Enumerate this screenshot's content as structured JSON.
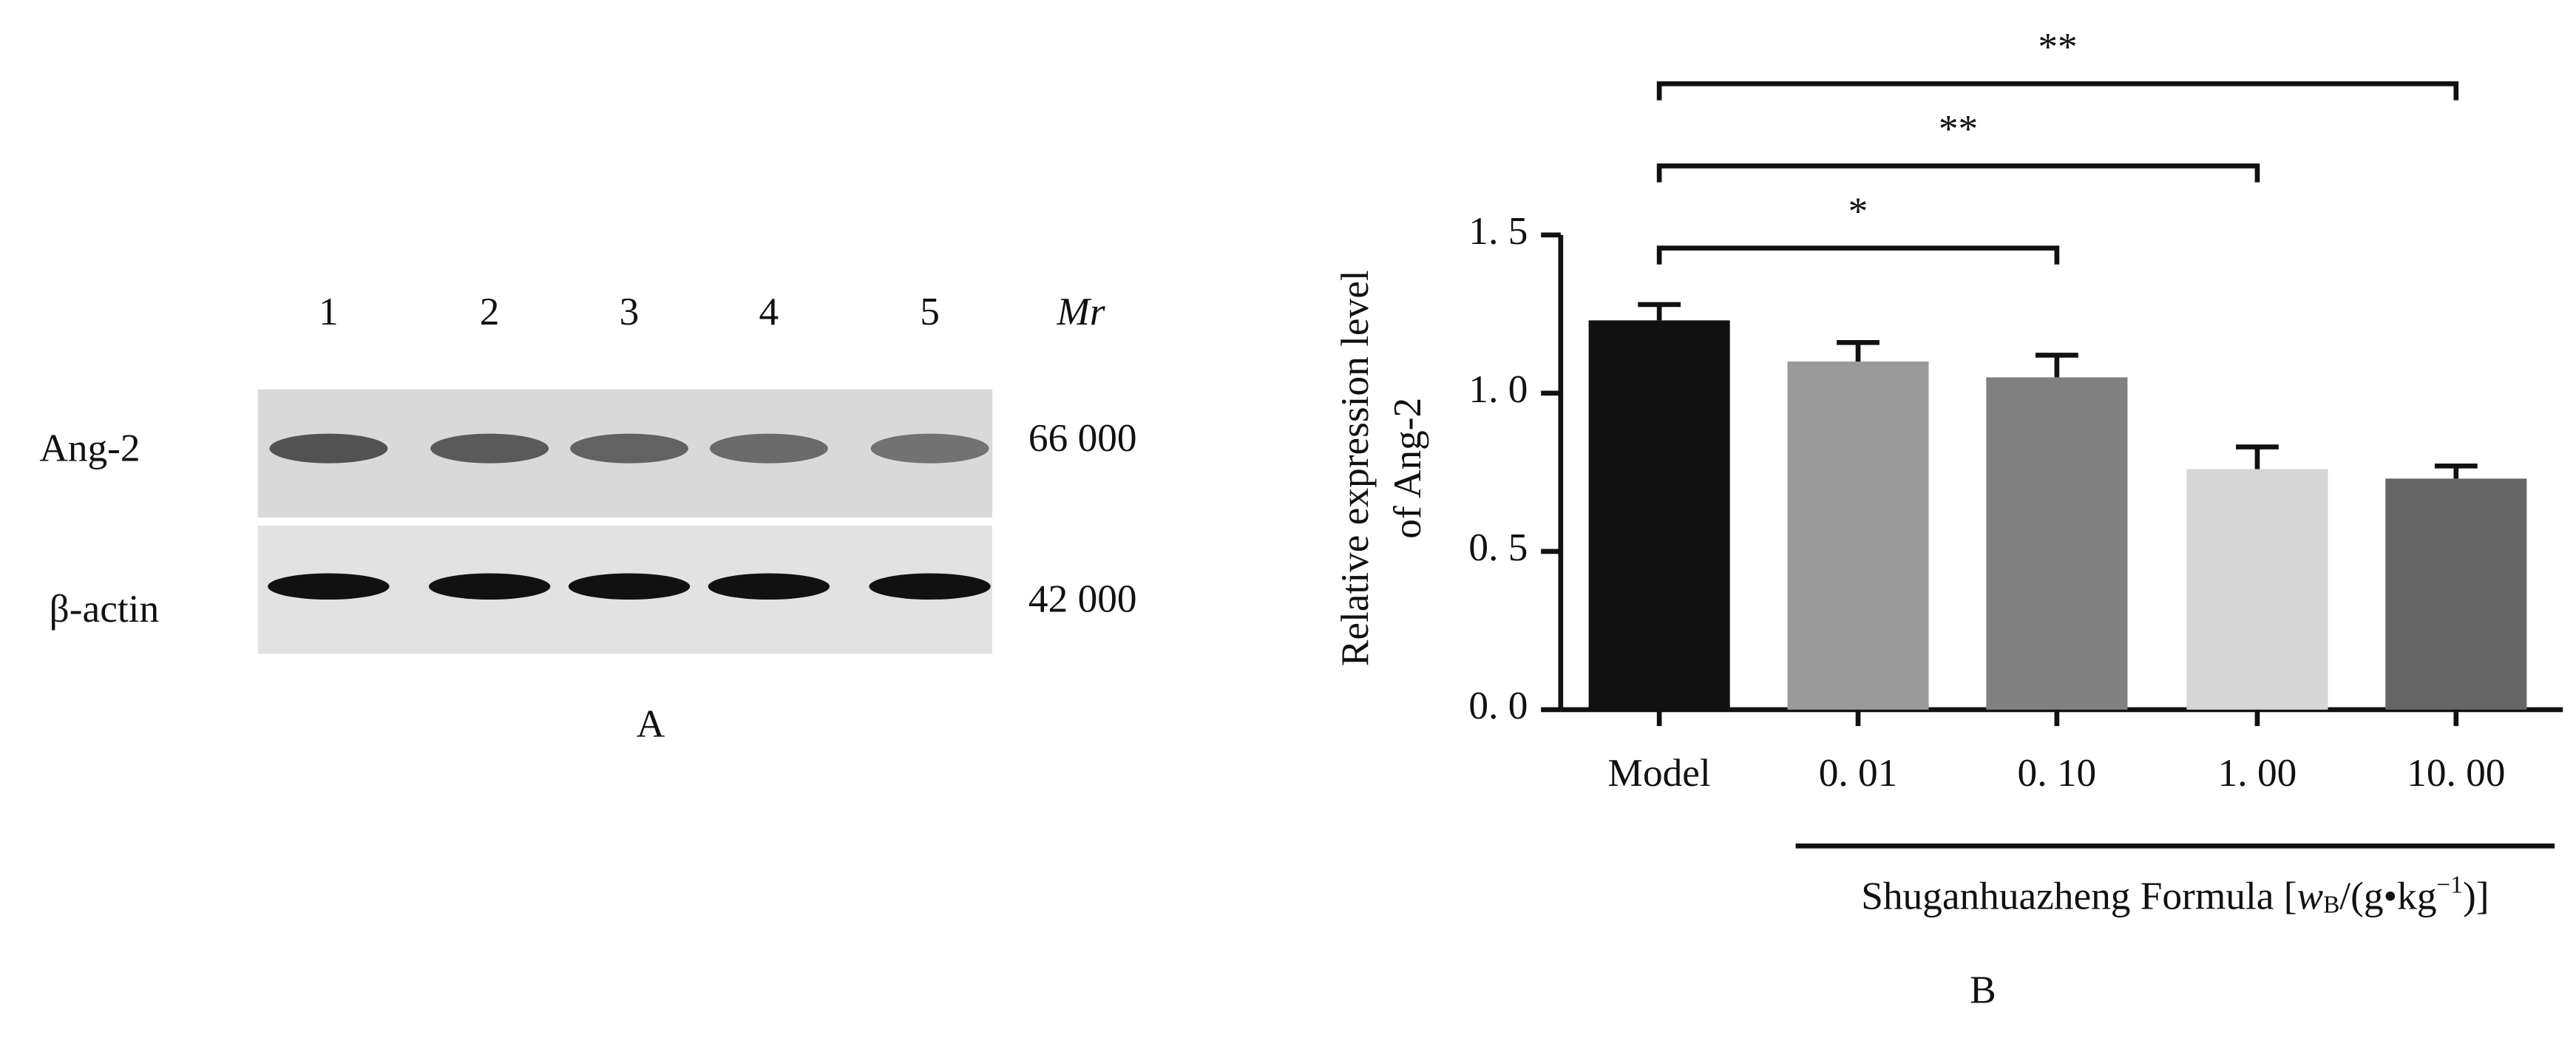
{
  "blot": {
    "lanes": [
      "1",
      "2",
      "3",
      "4",
      "5"
    ],
    "mr_label": "Mr",
    "rows": [
      {
        "label": "Ang-2",
        "mr": "66 000"
      },
      {
        "label": "β-actin",
        "mr": "42 000"
      }
    ],
    "panel_label": "A"
  },
  "chart_data": {
    "type": "bar",
    "panel_label": "B",
    "y_label": [
      "Relative expression level",
      "of Ang-2"
    ],
    "categories": [
      "Model",
      "0. 01",
      "0. 10",
      "1. 00",
      "10. 00"
    ],
    "values": [
      1.23,
      1.1,
      1.05,
      0.76,
      0.73
    ],
    "errors": [
      0.05,
      0.06,
      0.07,
      0.07,
      0.04
    ],
    "colors": [
      "#111111",
      "#9a9a9a",
      "#808080",
      "#d6d6d6",
      "#666666"
    ],
    "ylim": [
      0,
      1.5
    ],
    "yticks": [
      {
        "value": 0,
        "label": "0. 0"
      },
      {
        "value": 0.5,
        "label": "0. 5"
      },
      {
        "value": 1,
        "label": "1. 0"
      },
      {
        "value": 1.5,
        "label": "1. 5"
      }
    ],
    "group_label": {
      "from": 1,
      "to": 4,
      "text": [
        "Shuganhuazheng Formula [",
        "w",
        "B",
        "/(g•kg",
        "−1",
        ")]"
      ]
    },
    "annotations": [
      {
        "from": 0,
        "to": 2,
        "label": "*"
      },
      {
        "from": 0,
        "to": 3,
        "label": "**"
      },
      {
        "from": 0,
        "to": 4,
        "label": "**"
      }
    ]
  }
}
